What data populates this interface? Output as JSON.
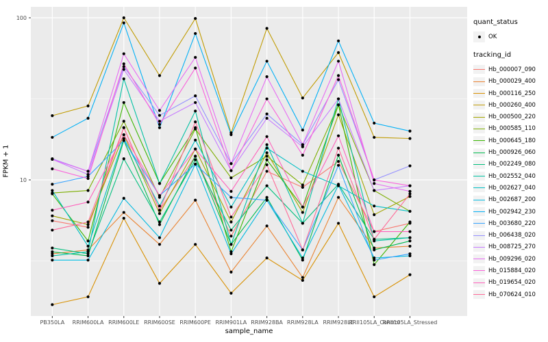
{
  "legend": {
    "quant_status_title": "quant_status",
    "quant_status_value": "OK",
    "tracking_id_title": "tracking_id"
  },
  "chart_data": {
    "type": "line",
    "title": "",
    "xlabel": "sample_name",
    "ylabel": "FPKM + 1",
    "y_scale": "log10",
    "y_ticks": [
      100,
      10
    ],
    "y_minor_ticks": [
      31.62,
      3.162
    ],
    "ylim": [
      1.45,
      110
    ],
    "grid": "on",
    "panel_bg": "#EBEBEB",
    "grid_color": "#FFFFFF",
    "point_color": "#000000",
    "axis_text_color": "#4D4D4D",
    "legend_position": "right",
    "quant_status": "OK",
    "categories": [
      "PB350LA",
      "RRIM600LA",
      "RRIM600LE",
      "RRIM600SE",
      "RRIM600PE",
      "RRIM901LA",
      "RRIM928BA",
      "RRIM928LA",
      "RRIM928LE",
      "RRII105LA_Control",
      "RRII105LA_Stressed"
    ],
    "series": [
      {
        "name": "Hb_000007_090",
        "color": "#F8766D",
        "values": [
          5.6,
          5.1,
          21,
          6.5,
          14,
          4.5,
          11.3,
          9,
          13,
          4.8,
          5.4
        ]
      },
      {
        "name": "Hb_000029_400",
        "color": "#EA8331",
        "values": [
          3.5,
          3.7,
          6.3,
          4,
          7.5,
          2.7,
          5.2,
          2.5,
          7.8,
          3.8,
          3.9
        ]
      },
      {
        "name": "Hb_000116_250",
        "color": "#D89000",
        "values": [
          1.7,
          1.9,
          5.8,
          2.3,
          4,
          2,
          3.3,
          2.4,
          5.4,
          1.9,
          2.6
        ]
      },
      {
        "name": "Hb_000260_400",
        "color": "#C09B00",
        "values": [
          24.9,
          28.6,
          100,
          44,
          99,
          19.5,
          86,
          32,
          61,
          18.3,
          18
        ]
      },
      {
        "name": "Hb_000500_220",
        "color": "#A3A500",
        "values": [
          6,
          5.3,
          19,
          6.2,
          15.5,
          5.5,
          14.7,
          6.3,
          25.2,
          6.1,
          7.9
        ]
      },
      {
        "name": "Hb_000585_110",
        "color": "#7CAE00",
        "values": [
          8.3,
          8.6,
          23,
          7.8,
          20.6,
          10.3,
          14,
          9.3,
          29,
          8.6,
          6.4
        ]
      },
      {
        "name": "Hb_000645_180",
        "color": "#39B600",
        "values": [
          8.2,
          4.2,
          30,
          9.5,
          21,
          3.6,
          13.3,
          6.8,
          29,
          3,
          5.5
        ]
      },
      {
        "name": "Hb_000926_060",
        "color": "#00BB4E",
        "values": [
          3.6,
          3.4,
          17.5,
          5.3,
          14,
          4,
          7.8,
          3.2,
          14.2,
          3.7,
          4.2
        ]
      },
      {
        "name": "Hb_002249_080",
        "color": "#00BF7D",
        "values": [
          3.8,
          3.5,
          13.5,
          5.5,
          13.3,
          4.9,
          9.2,
          5.4,
          9.4,
          4.3,
          4.4
        ]
      },
      {
        "name": "Hb_002552_040",
        "color": "#00C1A3",
        "values": [
          3.4,
          3.6,
          42,
          9.5,
          26.6,
          4,
          16.5,
          5.4,
          31.6,
          4.2,
          4.4
        ]
      },
      {
        "name": "Hb_002627_040",
        "color": "#00BFC4",
        "values": [
          8.6,
          3.9,
          18,
          6.9,
          17.6,
          6.8,
          15.7,
          11.3,
          9.2,
          6.9,
          6.4
        ]
      },
      {
        "name": "Hb_002687_200",
        "color": "#00BAE0",
        "values": [
          3.2,
          3.2,
          7.7,
          4.4,
          12.5,
          3.5,
          7.5,
          3.3,
          9.3,
          3.3,
          3.4
        ]
      },
      {
        "name": "Hb_002942_230",
        "color": "#00B0F6",
        "values": [
          18.3,
          24,
          93,
          21,
          80,
          19,
          54,
          20.3,
          72,
          22.4,
          20
        ]
      },
      {
        "name": "Hb_003680_220",
        "color": "#35A2FF",
        "values": [
          9.4,
          10.5,
          17.5,
          8,
          12.5,
          7.8,
          7.5,
          3.7,
          12.3,
          3.2,
          3.5
        ]
      },
      {
        "name": "Hb_006438_020",
        "color": "#9590FF",
        "values": [
          13.5,
          11.3,
          50,
          25,
          33,
          12.6,
          25.5,
          16.5,
          41.5,
          10,
          12.2
        ]
      },
      {
        "name": "Hb_008725_270",
        "color": "#C77CFF",
        "values": [
          13.4,
          10.8,
          48,
          23,
          30,
          11.4,
          24,
          16,
          31.6,
          8.6,
          9.2
        ]
      },
      {
        "name": "Hb_009296_020",
        "color": "#E76BF3",
        "values": [
          13.4,
          11.3,
          60,
          26.8,
          57,
          12.6,
          43.3,
          16.5,
          54,
          9.5,
          8.5
        ]
      },
      {
        "name": "Hb_015884_020",
        "color": "#FA62DB",
        "values": [
          11.7,
          10.2,
          52,
          22,
          49,
          11.4,
          31.6,
          14.2,
          44,
          10,
          9.2
        ]
      },
      {
        "name": "Hb_019654_020",
        "color": "#FF62BC",
        "values": [
          6.5,
          7.3,
          19,
          8,
          15.5,
          8.5,
          18.5,
          6.8,
          18.7,
          4.8,
          4.8
        ]
      },
      {
        "name": "Hb_070624_010",
        "color": "#FF6A98",
        "values": [
          4.9,
          5.5,
          21,
          6.5,
          22.8,
          5.9,
          12.4,
          3.7,
          15.7,
          4.3,
          8.2
        ]
      }
    ]
  }
}
